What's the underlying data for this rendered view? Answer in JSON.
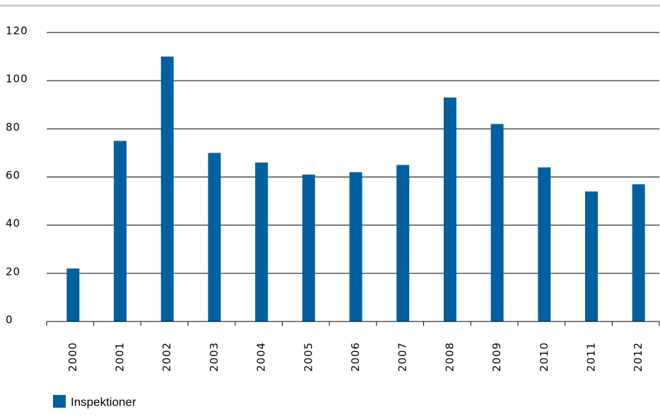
{
  "chart_data": {
    "type": "bar",
    "categories": [
      "2000",
      "2001",
      "2002",
      "2003",
      "2004",
      "2005",
      "2006",
      "2007",
      "2008",
      "2009",
      "2010",
      "2011",
      "2012"
    ],
    "series": [
      {
        "name": "Inspektioner",
        "color": "#0060a0",
        "values": [
          22,
          75,
          110,
          70,
          66,
          61,
          62,
          65,
          93,
          82,
          64,
          54,
          57
        ]
      }
    ],
    "ylim": [
      0,
      120
    ],
    "yticks": [
      0,
      20,
      40,
      60,
      80,
      100,
      120
    ],
    "grid": true,
    "legend": "bottom-left"
  }
}
